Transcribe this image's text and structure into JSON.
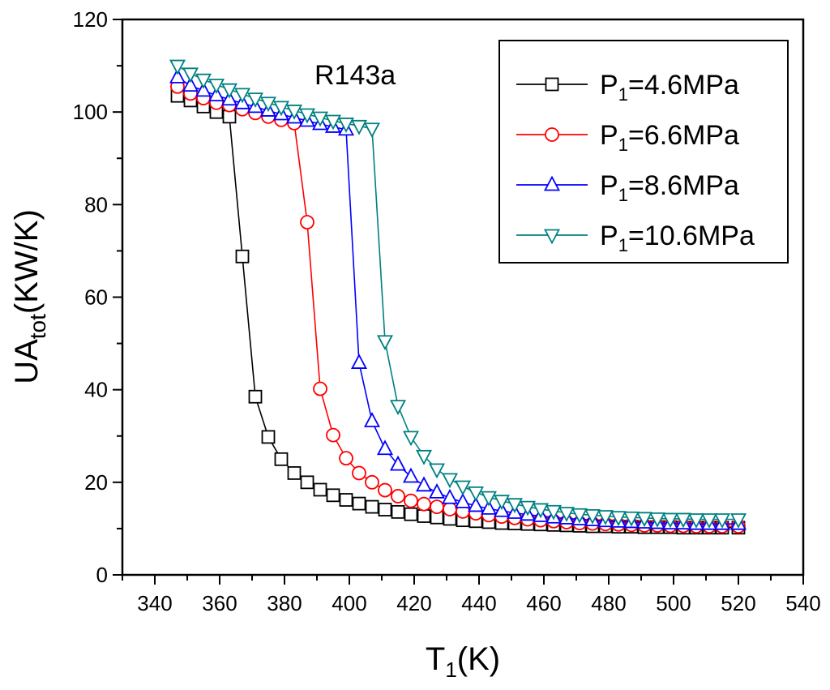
{
  "chart_data": {
    "type": "line",
    "title": "",
    "annotation": "R143a",
    "xlabel": {
      "main": "T",
      "sub": "1",
      "rest": "(K)"
    },
    "ylabel": {
      "main": "UA",
      "sub": "tot",
      "rest": "(KW/K)"
    },
    "xlim": [
      330,
      540
    ],
    "ylim": [
      0,
      120
    ],
    "xticks": [
      340,
      360,
      380,
      400,
      420,
      440,
      460,
      480,
      500,
      520,
      540
    ],
    "yticks": [
      0,
      20,
      40,
      60,
      80,
      100,
      120
    ],
    "grid": false,
    "legend_position": "top-right",
    "x": [
      347,
      351,
      355,
      359,
      363,
      367,
      371,
      375,
      379,
      383,
      387,
      391,
      395,
      399,
      403,
      407,
      411,
      415,
      419,
      423,
      427,
      431,
      435,
      439,
      443,
      447,
      451,
      455,
      459,
      463,
      467,
      471,
      475,
      479,
      483,
      487,
      491,
      495,
      499,
      503,
      507,
      511,
      515,
      520
    ],
    "series": [
      {
        "name": "P1=4.6MPa",
        "legend": {
          "main": "P",
          "sub": "1",
          "rest": "=4.6MPa"
        },
        "color": "#000000",
        "marker": "square",
        "values": [
          103.5,
          102.5,
          101.2,
          100.0,
          99.0,
          68.8,
          38.5,
          29.8,
          25.0,
          22.0,
          20.0,
          18.4,
          17.2,
          16.2,
          15.4,
          14.7,
          14.1,
          13.6,
          13.1,
          12.7,
          12.4,
          12.1,
          11.8,
          11.6,
          11.4,
          11.2,
          11.1,
          11.0,
          10.9,
          10.8,
          10.7,
          10.6,
          10.5,
          10.5,
          10.4,
          10.4,
          10.3,
          10.3,
          10.3,
          10.2,
          10.2,
          10.2,
          10.2,
          10.2
        ]
      },
      {
        "name": "P1=6.6MPa",
        "legend": {
          "main": "P",
          "sub": "1",
          "rest": "=6.6MPa"
        },
        "color": "#ff0000",
        "marker": "circle",
        "values": [
          105.5,
          104.0,
          103.0,
          102.0,
          101.5,
          100.6,
          99.8,
          99.0,
          98.3,
          97.6,
          76.2,
          40.2,
          30.2,
          25.2,
          22.0,
          20.0,
          18.3,
          17.0,
          16.0,
          15.3,
          14.7,
          14.2,
          13.7,
          13.3,
          12.9,
          12.6,
          12.3,
          12.0,
          11.8,
          11.6,
          11.4,
          11.2,
          11.1,
          11.0,
          10.9,
          10.8,
          10.7,
          10.7,
          10.6,
          10.6,
          10.5,
          10.5,
          10.5,
          10.5
        ]
      },
      {
        "name": "P1=8.6MPa",
        "legend": {
          "main": "P",
          "sub": "1",
          "rest": "=8.6MPa"
        },
        "color": "#0000ff",
        "marker": "triangle-up",
        "values": [
          107.5,
          105.7,
          104.6,
          103.6,
          102.7,
          101.9,
          101.1,
          100.3,
          99.5,
          98.8,
          98.1,
          97.4,
          96.8,
          96.2,
          45.8,
          33.2,
          27.2,
          23.8,
          21.2,
          19.3,
          17.8,
          16.6,
          15.7,
          14.9,
          14.3,
          13.8,
          13.4,
          13.0,
          12.7,
          12.4,
          12.2,
          12.0,
          11.8,
          11.6,
          11.5,
          11.4,
          11.3,
          11.2,
          11.1,
          11.1,
          11.0,
          11.0,
          11.0,
          11.0
        ]
      },
      {
        "name": "P1=10.6MPa",
        "legend": {
          "main": "P",
          "sub": "1",
          "rest": "=10.6MPa"
        },
        "color": "#008080",
        "marker": "triangle-down",
        "values": [
          110.0,
          108.3,
          107.0,
          105.9,
          104.9,
          103.9,
          102.9,
          102.0,
          101.1,
          100.3,
          99.5,
          98.8,
          98.1,
          97.5,
          97.0,
          96.4,
          50.5,
          36.5,
          29.8,
          25.7,
          22.8,
          20.7,
          19.1,
          17.8,
          16.8,
          16.0,
          15.3,
          14.7,
          14.2,
          13.8,
          13.4,
          13.1,
          12.9,
          12.7,
          12.5,
          12.4,
          12.3,
          12.2,
          12.1,
          12.1,
          12.0,
          12.0,
          12.0,
          12.0
        ]
      }
    ]
  }
}
